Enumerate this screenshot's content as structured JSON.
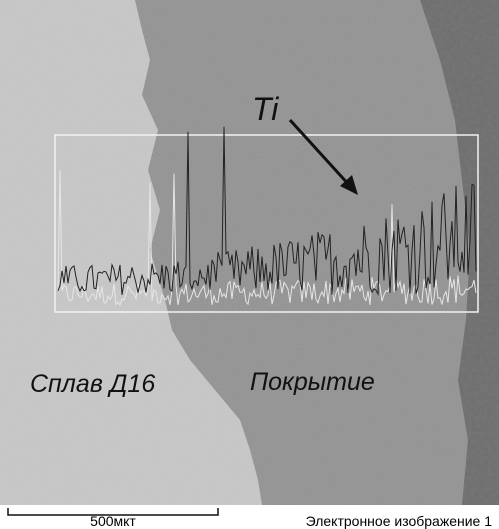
{
  "image": {
    "labels": {
      "element": "Ti",
      "substrate": "Сплав Д16",
      "coating": "Покрытие"
    }
  },
  "footer": {
    "scale_bar": "500мкт",
    "caption": "Электронное изображение 1"
  }
}
